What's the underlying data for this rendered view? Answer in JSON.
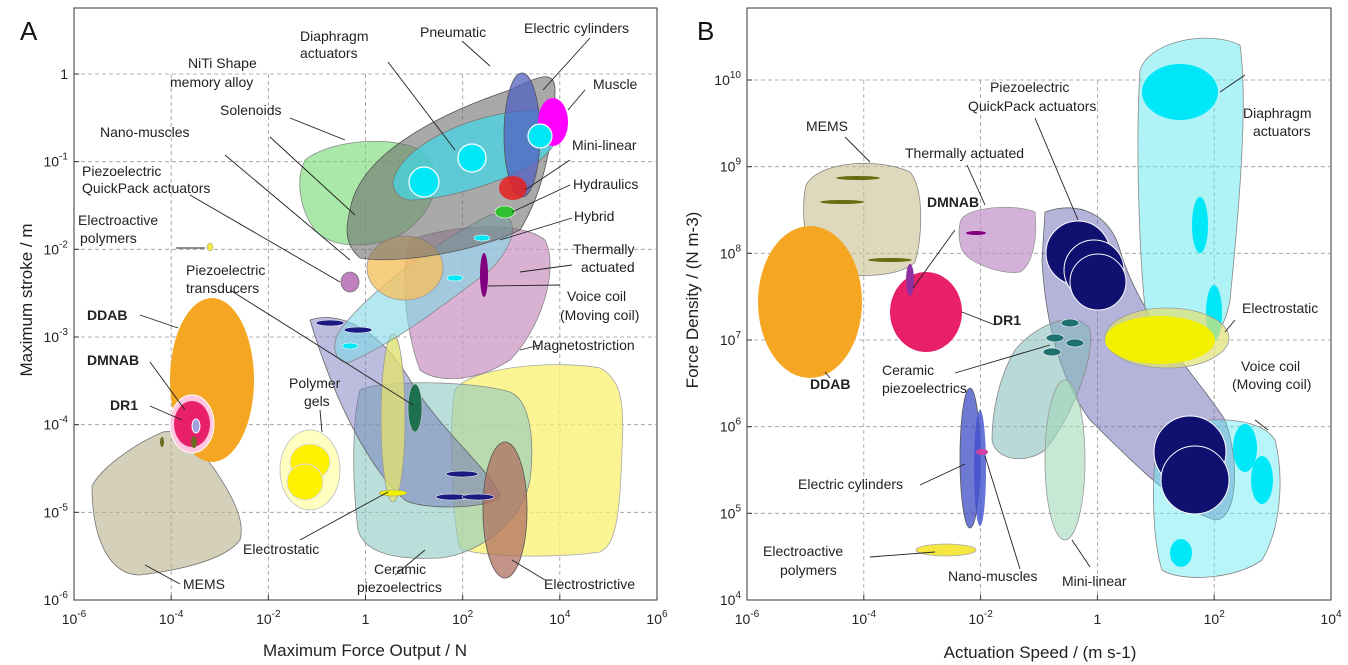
{
  "chart_data": [
    {
      "panel": "A",
      "type": "scatter",
      "xlabel": "Maximum Force Output / N",
      "ylabel": "Maximum stroke / m",
      "xscale": "log",
      "yscale": "log",
      "xlim": [
        1e-06,
        1000000.0
      ],
      "ylim": [
        1e-06,
        1.0
      ],
      "xticks": [
        "10-6",
        "10-4",
        "10-2",
        "1",
        "102",
        "104",
        "106"
      ],
      "yticks": [
        "10-6",
        "10-5",
        "10-4",
        "10-3",
        "10-2",
        "10-1",
        "1"
      ],
      "grid": true,
      "regions": [
        {
          "name": "MEMS",
          "x": 0.002,
          "y": 2e-05,
          "color": "#b8b08a"
        },
        {
          "name": "DDAB",
          "x": 0.0007,
          "y": 0.0003,
          "color": "#f5a623"
        },
        {
          "name": "DMNAB",
          "x": 0.00025,
          "y": 0.0001,
          "color": "#ffc0e0"
        },
        {
          "name": "DR1",
          "x": 0.00025,
          "y": 0.0001,
          "color": "#e8206a"
        },
        {
          "name": "Electroactive polymers",
          "x": 0.0012,
          "y": 0.01,
          "color": "#f5e642"
        },
        {
          "name": "Polymer gels",
          "x": 0.1,
          "y": 3e-05,
          "color": "#fff200"
        },
        {
          "name": "Electrostatic",
          "x": 5,
          "y": 0.0001,
          "color": "#d8d870"
        },
        {
          "name": "Ceramic piezoelectrics",
          "x": 100,
          "y": 0.0001,
          "color": "#7fb8b0"
        },
        {
          "name": "Piezoelectric transducers",
          "x": 50,
          "y": 0.0001,
          "color": "#6a6ab8"
        },
        {
          "name": "Magnetostriction",
          "x": 5000,
          "y": 0.0001,
          "color": "#f8f070"
        },
        {
          "name": "Electrostrictive",
          "x": 2000,
          "y": 2e-05,
          "color": "#b07060"
        },
        {
          "name": "Voice coil (Moving coil)",
          "x": 100,
          "y": 0.002,
          "color": "#c890c0"
        },
        {
          "name": "Thermally actuated",
          "x": 300,
          "y": 0.001,
          "color": "#b080c0"
        },
        {
          "name": "Hybrid",
          "x": 50,
          "y": 0.005,
          "color": "#80d8e8"
        },
        {
          "name": "Solenoids",
          "x": 10,
          "y": 0.02,
          "color": "#6a7ac0"
        },
        {
          "name": "Nano-muscles",
          "x": 3,
          "y": 0.005,
          "color": "#f5c060"
        },
        {
          "name": "Piezoelectric QuickPack actuators",
          "x": 0.5,
          "y": 0.005,
          "color": "#c080c0"
        },
        {
          "name": "NiTi Shape memory alloy",
          "x": 5,
          "y": 0.05,
          "color": "#70d870"
        },
        {
          "name": "Diaphragm actuators",
          "x": 100,
          "y": 0.1,
          "color": "#40d8e8"
        },
        {
          "name": "Pneumatic",
          "x": 200,
          "y": 0.1,
          "color": "#707070"
        },
        {
          "name": "Electric cylinders",
          "x": 5000,
          "y": 0.2,
          "color": "#5060c0"
        },
        {
          "name": "Muscle",
          "x": 8000,
          "y": 0.3,
          "color": "#ff00ff"
        },
        {
          "name": "Mini-linear",
          "x": 2000,
          "y": 0.05,
          "color": "#e82020"
        },
        {
          "name": "Hydraulics",
          "x": 1000,
          "y": 0.03,
          "color": "#60c060"
        }
      ]
    },
    {
      "panel": "B",
      "type": "scatter",
      "xlabel": "Actuation Speed / (m s-1)",
      "ylabel": "Force Density / (N m-3)",
      "xscale": "log",
      "yscale": "log",
      "xlim": [
        1e-06,
        10000.0
      ],
      "ylim": [
        10000.0,
        100000000000.0
      ],
      "xticks": [
        "10-6",
        "10-4",
        "10-2",
        "1",
        "102",
        "104"
      ],
      "yticks": [
        "104",
        "105",
        "106",
        "107",
        "108",
        "109",
        "1010"
      ],
      "grid": true,
      "regions": [
        {
          "name": "MEMS",
          "x": 0.0003,
          "y": 300000000.0,
          "color": "#c8c090"
        },
        {
          "name": "DDAB",
          "x": 1e-05,
          "y": 30000000.0,
          "color": "#f5a623"
        },
        {
          "name": "DMNAB",
          "x": 0.002,
          "y": 60000000.0,
          "color": "#c040a0"
        },
        {
          "name": "DR1",
          "x": 0.003,
          "y": 20000000.0,
          "color": "#e8206a"
        },
        {
          "name": "Thermally actuated",
          "x": 0.01,
          "y": 150000000.0,
          "color": "#c090c8"
        },
        {
          "name": "Ceramic piezoelectrics",
          "x": 0.2,
          "y": 5000000.0,
          "color": "#80b8b8"
        },
        {
          "name": "Piezoelectric QuickPack actuators",
          "x": 1,
          "y": 30000000.0,
          "color": "#6a6ab8"
        },
        {
          "name": "Electric cylinders",
          "x": 0.008,
          "y": 500000.0,
          "color": "#3040c0"
        },
        {
          "name": "Nano-muscles",
          "x": 0.01,
          "y": 500000.0,
          "color": "#d040a0"
        },
        {
          "name": "Mini-linear",
          "x": 0.5,
          "y": 200000.0,
          "color": "#a0d8b8"
        },
        {
          "name": "Electroactive polymers",
          "x": 0.008,
          "y": 40000.0,
          "color": "#f5e642"
        },
        {
          "name": "Electrostatic",
          "x": 50,
          "y": 12000000.0,
          "color": "#f0f000"
        },
        {
          "name": "Voice coil (Moving coil)",
          "x": 100,
          "y": 500000.0,
          "color": "#60e8f0"
        },
        {
          "name": "Diaphragm actuators",
          "x": 100,
          "y": 5000000000.0,
          "color": "#60e8f0"
        }
      ]
    }
  ],
  "panel_labels": {
    "a": "A",
    "b": "B"
  },
  "labels_a": {
    "pneumatic": "Pneumatic",
    "electric_cylinders": "Electric cylinders",
    "diaphragm_1": "Diaphragm",
    "diaphragm_2": "actuators",
    "niti_1": "NiTi Shape",
    "niti_2": "memory alloy",
    "muscle": "Muscle",
    "solenoids": "Solenoids",
    "nano_muscles": "Nano-muscles",
    "mini_linear": "Mini-linear",
    "quickpack_1": "Piezoelectric",
    "quickpack_2": "QuickPack actuators",
    "hydraulics": "Hydraulics",
    "hybrid": "Hybrid",
    "eap_1": "Electroactive",
    "eap_2": "polymers",
    "thermal_1": "Thermally",
    "thermal_2": "actuated",
    "pzt_trans_1": "Piezoelectric",
    "pzt_trans_2": "transducers",
    "voice_1": "Voice coil",
    "voice_2": "(Moving coil)",
    "ddab": "DDAB",
    "magnetostriction": "Magnetostriction",
    "dmnab": "DMNAB",
    "dr1": "DR1",
    "polymer_gels_1": "Polymer",
    "polymer_gels_2": "gels",
    "electrostatic": "Electrostatic",
    "ceramic_1": "Ceramic",
    "ceramic_2": "piezoelectrics",
    "mems": "MEMS",
    "electrostrictive": "Electrostrictive"
  },
  "labels_b": {
    "mems": "MEMS",
    "quickpack_1": "Piezoelectric",
    "quickpack_2": "QuickPack actuators",
    "diaphragm_1": "Diaphragm",
    "diaphragm_2": "actuators",
    "thermal": "Thermally actuated",
    "dmnab": "DMNAB",
    "dr1": "DR1",
    "electrostatic": "Electrostatic",
    "ddab": "DDAB",
    "ceramic_1": "Ceramic",
    "ceramic_2": "piezoelectrics",
    "voice_1": "Voice coil",
    "voice_2": "(Moving coil)",
    "electric_cylinders": "Electric cylinders",
    "eap_1": "Electroactive",
    "eap_2": "polymers",
    "nano_muscles": "Nano-muscles",
    "mini_linear": "Mini-linear"
  }
}
